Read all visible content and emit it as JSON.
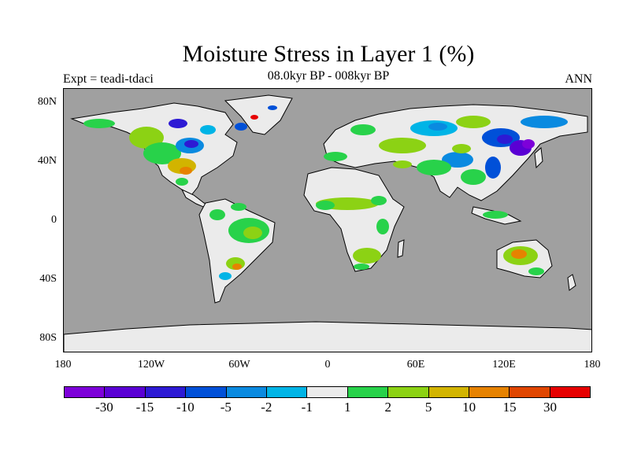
{
  "title": "Moisture Stress in Layer 1 (%)",
  "subtitle": "08.0kyr BP - 008kyr BP",
  "left_label": "Expt = teadi-tdaci",
  "right_label": "ANN",
  "map": {
    "ocean_color": "#a0a0a0",
    "land_no_change_color": "#ebebeb",
    "lat_ticks": [
      "80N",
      "40N",
      "0",
      "40S",
      "80S"
    ],
    "lon_ticks": [
      "180",
      "120W",
      "60W",
      "0",
      "60E",
      "120E",
      "180"
    ]
  },
  "colorbar": {
    "colors": [
      "#7d00d9",
      "#5a00d4",
      "#2d1ad4",
      "#0050d8",
      "#0a8ae0",
      "#00b4e6",
      "#ebebeb",
      "#28d24a",
      "#8cd214",
      "#d2b400",
      "#e68200",
      "#e04600",
      "#e60000"
    ],
    "labels": [
      "-30",
      "-15",
      "-10",
      "-5",
      "-2",
      "-1",
      "1",
      "2",
      "5",
      "10",
      "15",
      "30"
    ]
  }
}
